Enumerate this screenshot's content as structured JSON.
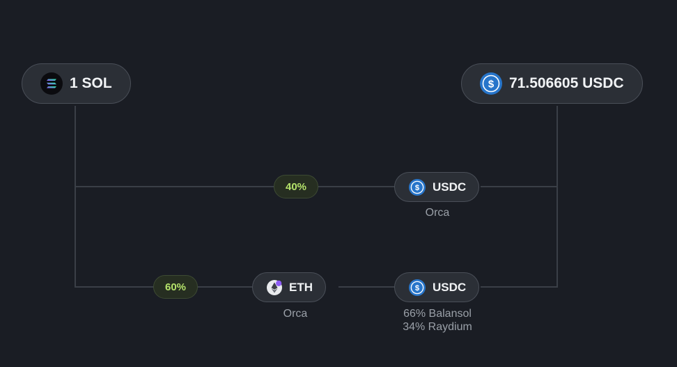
{
  "route": {
    "input": {
      "amount_label": "1 SOL",
      "icon": "solana-icon"
    },
    "output": {
      "amount_label": "71.506605 USDC",
      "icon": "usdc-icon"
    },
    "paths": [
      {
        "share": "40%",
        "hops": [
          {
            "token": "USDC",
            "icon": "usdc-icon",
            "venues": [
              "Orca"
            ]
          }
        ]
      },
      {
        "share": "60%",
        "hops": [
          {
            "token": "ETH",
            "icon": "eth-icon",
            "venues": [
              "Orca"
            ]
          },
          {
            "token": "USDC",
            "icon": "usdc-icon",
            "venues": [
              "66% Balansol",
              "34% Raydium"
            ]
          }
        ]
      }
    ]
  },
  "colors": {
    "background": "#1a1d24",
    "pill_bg": "#2b2f36",
    "pill_border": "#4a4f58",
    "line": "#3a3f47",
    "percent_text": "#b5e36b",
    "usdc_blue": "#2775ca"
  }
}
